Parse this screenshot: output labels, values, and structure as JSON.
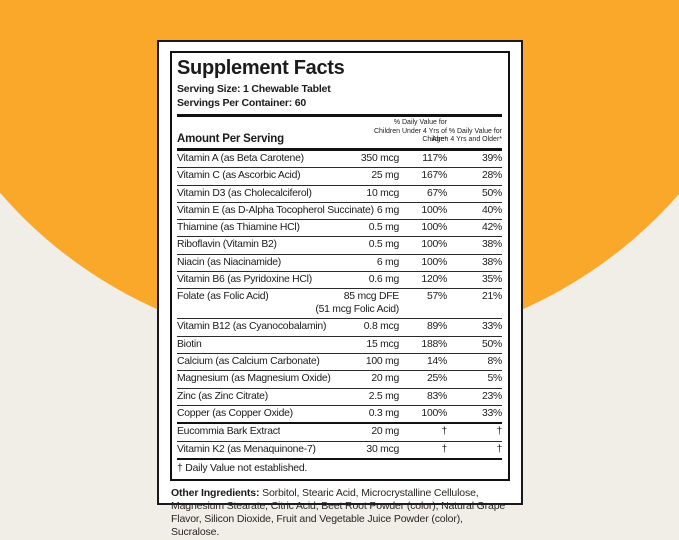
{
  "colors": {
    "orange": "#F9A82A",
    "cream": "#F1EEE8",
    "panel_border": "#111111"
  },
  "label": {
    "title": "Supplement Facts",
    "serving_size": "Serving Size: 1 Chewable Tablet",
    "servings_per_container": "Servings Per Container: 60",
    "amount_header": "Amount Per Serving",
    "col1_header": "% Daily Value for Children Under 4 Yrs of Age*",
    "col2_header": "% Daily Value for Children 4 Yrs and Older*",
    "rows": [
      {
        "name": "Vitamin A (as Beta Carotene)",
        "amount": "350 mcg",
        "dv1": "117%",
        "dv2": "39%"
      },
      {
        "name": "Vitamin C (as Ascorbic Acid)",
        "amount": "25 mg",
        "dv1": "167%",
        "dv2": "28%"
      },
      {
        "name": "Vitamin D3 (as Cholecalciferol)",
        "amount": "10 mcg",
        "dv1": "67%",
        "dv2": "50%"
      },
      {
        "name": "Vitamin E (as D-Alpha Tocopherol Succinate)",
        "amount": "6 mg",
        "dv1": "100%",
        "dv2": "40%"
      },
      {
        "name": "Thiamine (as Thiamine HCl)",
        "amount": "0.5 mg",
        "dv1": "100%",
        "dv2": "42%"
      },
      {
        "name": "Riboflavin (Vitamin B2)",
        "amount": "0.5 mg",
        "dv1": "100%",
        "dv2": "38%"
      },
      {
        "name": "Niacin (as Niacinamide)",
        "amount": "6 mg",
        "dv1": "100%",
        "dv2": "38%"
      },
      {
        "name": "Vitamin B6 (as Pyridoxine HCl)",
        "amount": "0.6 mg",
        "dv1": "120%",
        "dv2": "35%"
      },
      {
        "name": "Folate (as Folic Acid)",
        "amount": "85 mcg DFE",
        "amount2": "(51 mcg Folic Acid)",
        "dv1": "57%",
        "dv2": "21%"
      },
      {
        "name": "Vitamin B12 (as Cyanocobalamin)",
        "amount": "0.8 mcg",
        "dv1": "89%",
        "dv2": "33%"
      },
      {
        "name": "Biotin",
        "amount": "15 mcg",
        "dv1": "188%",
        "dv2": "50%"
      },
      {
        "name": "Calcium (as Calcium Carbonate)",
        "amount": "100 mg",
        "dv1": "14%",
        "dv2": "8%"
      },
      {
        "name": "Magnesium (as Magnesium Oxide)",
        "amount": "20 mg",
        "dv1": "25%",
        "dv2": "5%"
      },
      {
        "name": "Zinc (as Zinc Citrate)",
        "amount": "2.5 mg",
        "dv1": "83%",
        "dv2": "23%"
      },
      {
        "name": "Copper (as Copper Oxide)",
        "amount": "0.3 mg",
        "dv1": "100%",
        "dv2": "33%"
      },
      {
        "name": "Eucommia Bark Extract",
        "amount": "20 mg",
        "dv1": "†",
        "dv2": "†",
        "thick_top": true
      },
      {
        "name": "Vitamin K2 (as Menaquinone-7)",
        "amount": "30 mcg",
        "dv1": "†",
        "dv2": "†"
      }
    ],
    "footnote": "† Daily Value not established.",
    "other_ingredients_label": "Other Ingredients:",
    "other_ingredients": "Sorbitol, Stearic Acid, Microcrystalline Cellulose, Magnesium Stearate, Citric Acid, Beet Root Powder (color), Natural Grape Flavor, Silicon Dioxide, Fruit and Vegetable Juice Powder (color), Sucralose."
  }
}
